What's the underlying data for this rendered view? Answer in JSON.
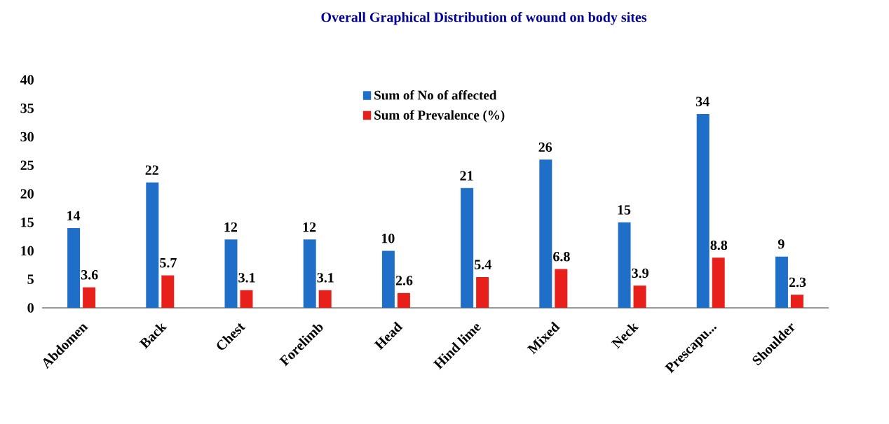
{
  "chart_data": {
    "type": "bar",
    "title": "Overall Graphical Distribution of wound on body sites",
    "categories": [
      "Abdomen",
      "Back",
      "Chest",
      "Forelimb",
      "Head",
      "Hind lime",
      "Mixed",
      "Neck",
      "Prescapu...",
      "Shoulder"
    ],
    "series": [
      {
        "name": "Sum of No of affected",
        "color": "#1f6fc8",
        "values": [
          14,
          22,
          12,
          12,
          10,
          21,
          26,
          15,
          34,
          9
        ]
      },
      {
        "name": "Sum of Prevalence (%)",
        "color": "#e8201c",
        "values": [
          3.6,
          5.7,
          3.1,
          3.1,
          2.6,
          5.4,
          6.8,
          3.9,
          8.8,
          2.3
        ]
      }
    ],
    "ylim": [
      0,
      40
    ],
    "yticks": [
      0,
      5,
      10,
      15,
      20,
      25,
      30,
      35,
      40
    ],
    "data_labels": true,
    "legend": "top",
    "grid": false
  }
}
